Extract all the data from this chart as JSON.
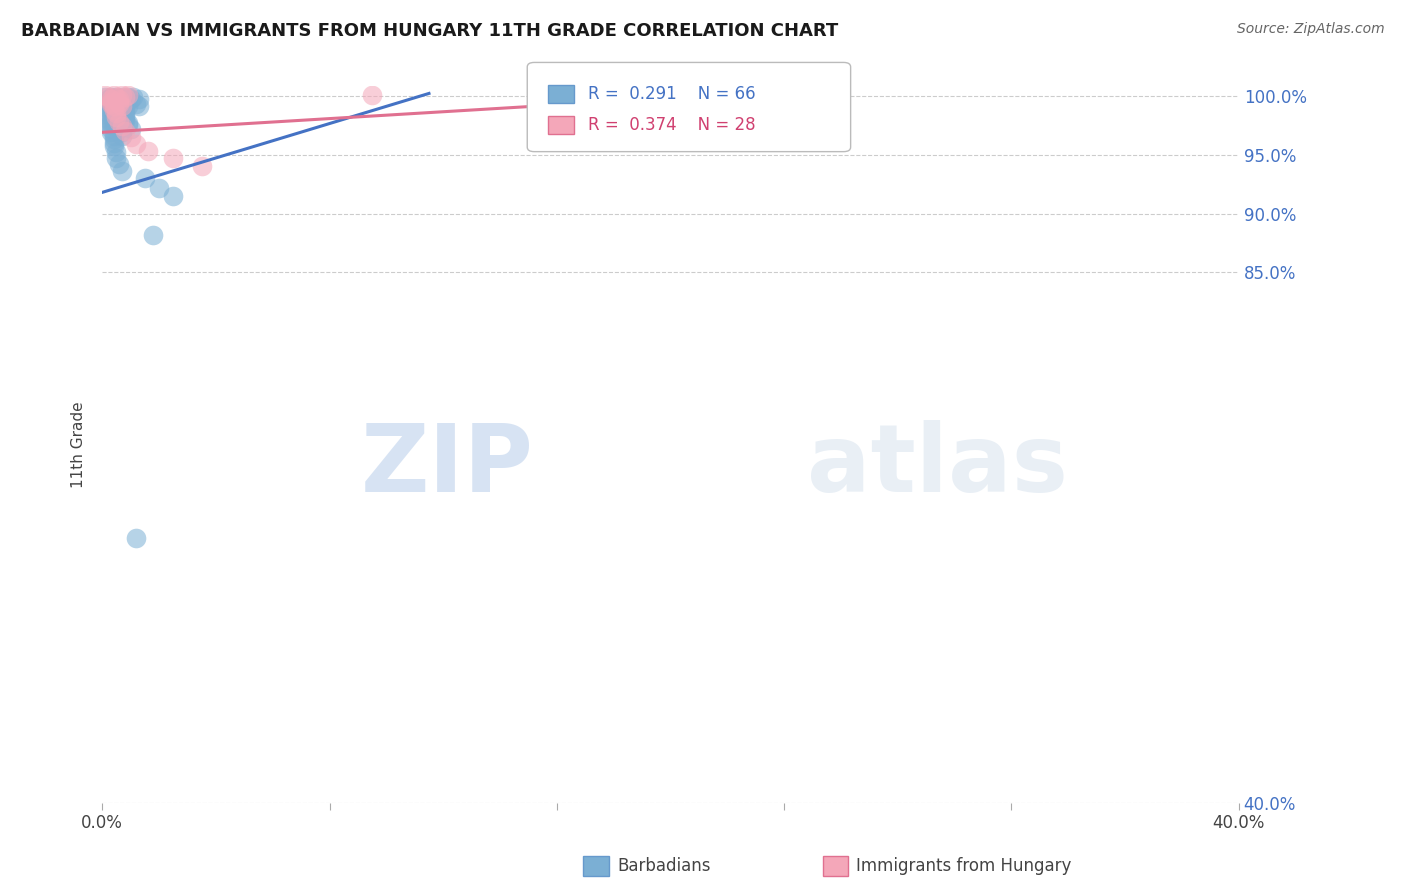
{
  "title": "BARBADIAN VS IMMIGRANTS FROM HUNGARY 11TH GRADE CORRELATION CHART",
  "source": "Source: ZipAtlas.com",
  "ylabel_label": "11th Grade",
  "x_min": 0.0,
  "x_max": 0.4,
  "y_min": 0.4,
  "y_max": 1.008,
  "x_ticks": [
    0.0,
    0.08,
    0.16,
    0.24,
    0.32,
    0.4
  ],
  "x_tick_labels": [
    "0.0%",
    "",
    "",
    "",
    "",
    "40.0%"
  ],
  "y_ticks": [
    0.4,
    0.85,
    0.9,
    0.95,
    1.0
  ],
  "y_tick_labels": [
    "40.0%",
    "85.0%",
    "90.0%",
    "95.0%",
    "100.0%"
  ],
  "blue_color": "#7bafd4",
  "pink_color": "#f4a7b9",
  "blue_line_color": "#4472c4",
  "pink_line_color": "#e07090",
  "R_blue": 0.291,
  "N_blue": 66,
  "R_pink": 0.374,
  "N_pink": 28,
  "watermark_zip": "ZIP",
  "watermark_atlas": "atlas",
  "blue_points": [
    [
      0.001,
      0.999
    ],
    [
      0.003,
      0.999
    ],
    [
      0.005,
      0.999
    ],
    [
      0.007,
      0.999
    ],
    [
      0.009,
      0.999
    ],
    [
      0.011,
      0.999
    ],
    [
      0.002,
      0.997
    ],
    [
      0.004,
      0.997
    ],
    [
      0.006,
      0.997
    ],
    [
      0.008,
      0.997
    ],
    [
      0.01,
      0.997
    ],
    [
      0.013,
      0.997
    ],
    [
      0.002,
      0.995
    ],
    [
      0.004,
      0.995
    ],
    [
      0.006,
      0.995
    ],
    [
      0.003,
      0.993
    ],
    [
      0.005,
      0.993
    ],
    [
      0.008,
      0.993
    ],
    [
      0.012,
      0.993
    ],
    [
      0.003,
      0.991
    ],
    [
      0.006,
      0.991
    ],
    [
      0.009,
      0.991
    ],
    [
      0.013,
      0.991
    ],
    [
      0.003,
      0.989
    ],
    [
      0.005,
      0.989
    ],
    [
      0.008,
      0.989
    ],
    [
      0.003,
      0.987
    ],
    [
      0.005,
      0.987
    ],
    [
      0.007,
      0.987
    ],
    [
      0.003,
      0.985
    ],
    [
      0.005,
      0.985
    ],
    [
      0.008,
      0.985
    ],
    [
      0.003,
      0.983
    ],
    [
      0.005,
      0.983
    ],
    [
      0.008,
      0.983
    ],
    [
      0.003,
      0.981
    ],
    [
      0.005,
      0.981
    ],
    [
      0.008,
      0.981
    ],
    [
      0.003,
      0.979
    ],
    [
      0.005,
      0.979
    ],
    [
      0.008,
      0.979
    ],
    [
      0.003,
      0.977
    ],
    [
      0.006,
      0.977
    ],
    [
      0.009,
      0.977
    ],
    [
      0.003,
      0.975
    ],
    [
      0.006,
      0.975
    ],
    [
      0.009,
      0.975
    ],
    [
      0.003,
      0.972
    ],
    [
      0.006,
      0.972
    ],
    [
      0.01,
      0.972
    ],
    [
      0.003,
      0.969
    ],
    [
      0.007,
      0.969
    ],
    [
      0.004,
      0.966
    ],
    [
      0.007,
      0.966
    ],
    [
      0.004,
      0.963
    ],
    [
      0.004,
      0.96
    ],
    [
      0.004,
      0.957
    ],
    [
      0.005,
      0.952
    ],
    [
      0.005,
      0.947
    ],
    [
      0.006,
      0.942
    ],
    [
      0.007,
      0.936
    ],
    [
      0.015,
      0.93
    ],
    [
      0.02,
      0.922
    ],
    [
      0.025,
      0.915
    ],
    [
      0.018,
      0.882
    ],
    [
      0.012,
      0.625
    ]
  ],
  "pink_points": [
    [
      0.001,
      1.001
    ],
    [
      0.004,
      1.001
    ],
    [
      0.007,
      1.001
    ],
    [
      0.009,
      1.001
    ],
    [
      0.002,
      0.999
    ],
    [
      0.005,
      0.999
    ],
    [
      0.008,
      0.999
    ],
    [
      0.003,
      0.997
    ],
    [
      0.006,
      0.997
    ],
    [
      0.003,
      0.995
    ],
    [
      0.006,
      0.995
    ],
    [
      0.003,
      0.993
    ],
    [
      0.006,
      0.993
    ],
    [
      0.004,
      0.991
    ],
    [
      0.007,
      0.991
    ],
    [
      0.004,
      0.988
    ],
    [
      0.005,
      0.985
    ],
    [
      0.005,
      0.982
    ],
    [
      0.006,
      0.978
    ],
    [
      0.007,
      0.974
    ],
    [
      0.008,
      0.97
    ],
    [
      0.01,
      0.965
    ],
    [
      0.012,
      0.959
    ],
    [
      0.016,
      0.953
    ],
    [
      0.025,
      0.947
    ],
    [
      0.035,
      0.94
    ],
    [
      0.095,
      1.001
    ],
    [
      0.165,
      0.993
    ]
  ],
  "blue_line": {
    "x0": 0.0,
    "y0": 0.918,
    "x1": 0.115,
    "y1": 1.002
  },
  "pink_line": {
    "x0": 0.0,
    "y0": 0.969,
    "x1": 0.165,
    "y1": 0.993
  }
}
